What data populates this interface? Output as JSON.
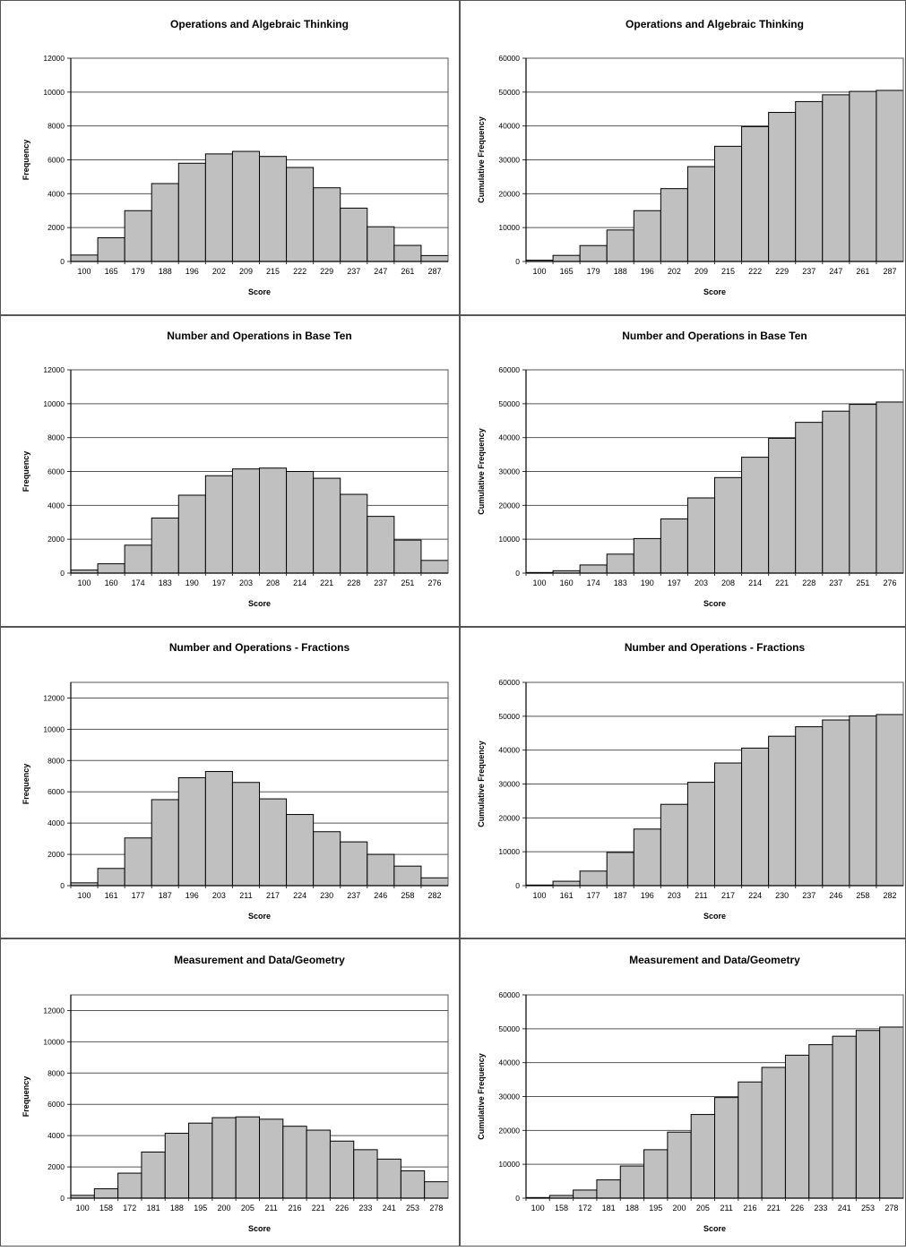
{
  "chart_data": [
    {
      "type": "bar",
      "title": "Operations and Algebraic Thinking",
      "xlabel": "Score",
      "ylabel": "Frequency",
      "ylim": [
        0,
        12000
      ],
      "yticks": [
        0,
        2000,
        4000,
        6000,
        8000,
        10000,
        12000
      ],
      "categories": [
        "100",
        "165",
        "179",
        "188",
        "196",
        "202",
        "209",
        "215",
        "222",
        "229",
        "237",
        "247",
        "261",
        "287"
      ],
      "values": [
        380,
        1400,
        3000,
        4600,
        5800,
        6350,
        6500,
        6200,
        5550,
        4350,
        3150,
        2050,
        950,
        350
      ],
      "grid": true
    },
    {
      "type": "bar",
      "title": "Operations and Algebraic Thinking",
      "xlabel": "Score",
      "ylabel": "Cumulative Frequency",
      "ylim": [
        0,
        60000
      ],
      "yticks": [
        0,
        10000,
        20000,
        30000,
        40000,
        50000,
        60000
      ],
      "categories": [
        "100",
        "165",
        "179",
        "188",
        "196",
        "202",
        "209",
        "215",
        "222",
        "229",
        "237",
        "247",
        "261",
        "287"
      ],
      "values": [
        380,
        1800,
        4700,
        9300,
        15000,
        21500,
        28000,
        34000,
        39800,
        44000,
        47200,
        49200,
        50200,
        50500
      ],
      "grid": true
    },
    {
      "type": "bar",
      "title": "Number and Operations in Base Ten",
      "xlabel": "Score",
      "ylabel": "Frequency",
      "ylim": [
        0,
        12000
      ],
      "yticks": [
        0,
        2000,
        4000,
        6000,
        8000,
        10000,
        12000
      ],
      "categories": [
        "100",
        "160",
        "174",
        "183",
        "190",
        "197",
        "203",
        "208",
        "214",
        "221",
        "228",
        "237",
        "251",
        "276"
      ],
      "values": [
        180,
        550,
        1650,
        3250,
        4600,
        5750,
        6150,
        6200,
        6000,
        5600,
        4650,
        3350,
        1950,
        750
      ],
      "grid": true
    },
    {
      "type": "bar",
      "title": "Number and Operations in Base Ten",
      "xlabel": "Score",
      "ylabel": "Cumulative Frequency",
      "ylim": [
        0,
        60000
      ],
      "yticks": [
        0,
        10000,
        20000,
        30000,
        40000,
        50000,
        60000
      ],
      "categories": [
        "100",
        "160",
        "174",
        "183",
        "190",
        "197",
        "203",
        "208",
        "214",
        "221",
        "228",
        "237",
        "251",
        "276"
      ],
      "values": [
        180,
        700,
        2400,
        5600,
        10200,
        16000,
        22200,
        28200,
        34200,
        39800,
        44500,
        47800,
        49800,
        50500
      ],
      "grid": true
    },
    {
      "type": "bar",
      "title": "Number and Operations - Fractions",
      "xlabel": "Score",
      "ylabel": "Frequency",
      "ylim": [
        0,
        13000
      ],
      "yticks": [
        0,
        2000,
        4000,
        6000,
        8000,
        10000,
        12000
      ],
      "categories": [
        "100",
        "161",
        "177",
        "187",
        "196",
        "203",
        "211",
        "217",
        "224",
        "230",
        "237",
        "246",
        "258",
        "282"
      ],
      "values": [
        180,
        1100,
        3050,
        5500,
        6900,
        7300,
        6600,
        5550,
        4550,
        3450,
        2800,
        2000,
        1250,
        500
      ],
      "grid": true
    },
    {
      "type": "bar",
      "title": "Number and Operations - Fractions",
      "xlabel": "Score",
      "ylabel": "Cumulative Frequency",
      "ylim": [
        0,
        60000
      ],
      "yticks": [
        0,
        10000,
        20000,
        30000,
        40000,
        50000,
        60000
      ],
      "categories": [
        "100",
        "161",
        "177",
        "187",
        "196",
        "203",
        "211",
        "217",
        "224",
        "230",
        "237",
        "246",
        "258",
        "282"
      ],
      "values": [
        180,
        1300,
        4300,
        9800,
        16700,
        24000,
        30500,
        36200,
        40600,
        44100,
        46900,
        48900,
        50100,
        50500
      ],
      "grid": true
    },
    {
      "type": "bar",
      "title": "Measurement and Data/Geometry",
      "xlabel": "Score",
      "ylabel": "Frequency",
      "ylim": [
        0,
        13000
      ],
      "yticks": [
        0,
        2000,
        4000,
        6000,
        8000,
        10000,
        12000
      ],
      "categories": [
        "100",
        "158",
        "172",
        "181",
        "188",
        "195",
        "200",
        "205",
        "211",
        "216",
        "221",
        "226",
        "233",
        "241",
        "253",
        "278"
      ],
      "values": [
        180,
        600,
        1600,
        2950,
        4150,
        4800,
        5150,
        5200,
        5050,
        4600,
        4350,
        3650,
        3100,
        2500,
        1750,
        1050
      ],
      "grid": true
    },
    {
      "type": "bar",
      "title": "Measurement and Data/Geometry",
      "xlabel": "Score",
      "ylabel": "Cumulative Frequency",
      "ylim": [
        0,
        60000
      ],
      "yticks": [
        0,
        10000,
        20000,
        30000,
        40000,
        50000,
        60000
      ],
      "categories": [
        "100",
        "158",
        "172",
        "181",
        "188",
        "195",
        "200",
        "205",
        "211",
        "216",
        "221",
        "226",
        "233",
        "241",
        "253",
        "278"
      ],
      "values": [
        180,
        800,
        2400,
        5400,
        9500,
        14300,
        19500,
        24700,
        29700,
        34300,
        38600,
        42200,
        45300,
        47800,
        49500,
        50500
      ],
      "grid": true
    }
  ]
}
